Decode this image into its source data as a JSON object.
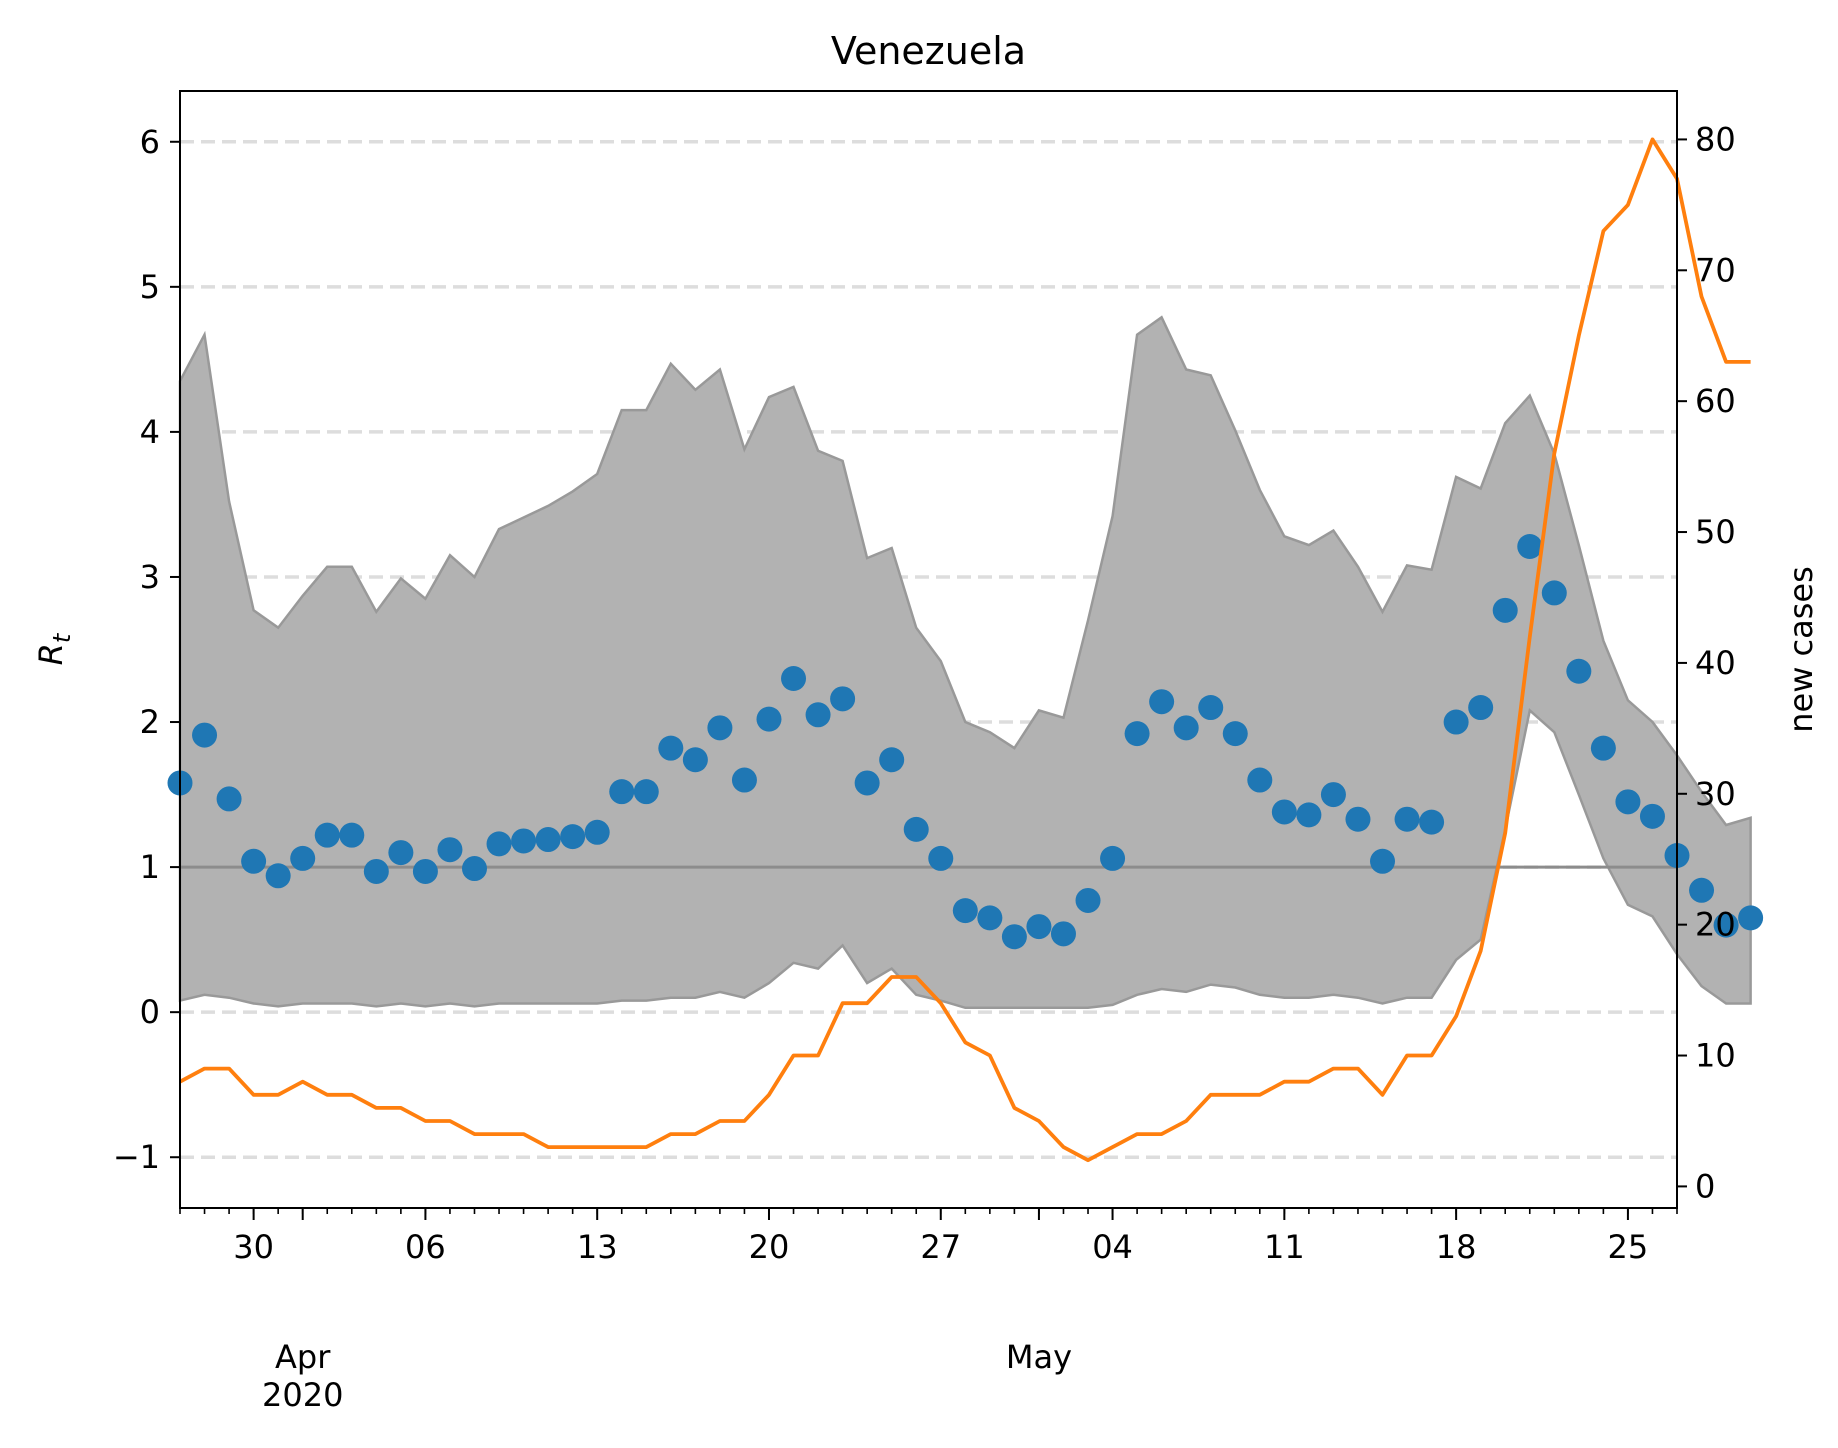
{
  "chart_data": {
    "type": "line",
    "title": "Venezuela",
    "ylabel": "R_t",
    "y2label": "new cases",
    "x_start": "2020-03-27",
    "x_end": "2020-05-27",
    "ylim": [
      -1.35,
      6.35
    ],
    "y2lim": [
      -1.65,
      83.7
    ],
    "yticks": [
      -1,
      0,
      1,
      2,
      3,
      4,
      5,
      6
    ],
    "ytick_labels": [
      "−1",
      "0",
      "1",
      "2",
      "3",
      "4",
      "5",
      "6"
    ],
    "y2ticks": [
      0,
      10,
      20,
      30,
      40,
      50,
      60,
      70,
      80
    ],
    "y2tick_labels": [
      "0",
      "10",
      "20",
      "30",
      "40",
      "50",
      "60",
      "70",
      "80"
    ],
    "xtick_dates": [
      "2020-03-30",
      "2020-04-06",
      "2020-04-13",
      "2020-04-20",
      "2020-04-27",
      "2020-05-04",
      "2020-05-11",
      "2020-05-18",
      "2020-05-25"
    ],
    "xtick_labels": [
      "30",
      "06",
      "13",
      "20",
      "27",
      "04",
      "11",
      "18",
      "25"
    ],
    "month_labels": [
      {
        "date": "2020-04-01",
        "label": "Apr",
        "year": "2020"
      },
      {
        "date": "2020-05-01",
        "label": "May",
        "year": ""
      }
    ],
    "reference_line": 1,
    "grid": "horizontal dashed",
    "colors": {
      "rt": "#1f77b4",
      "cases": "#ff7f0e",
      "band": "#b2b2b2",
      "band_edge": "#999999",
      "reference": "#8c8c8c",
      "grid": "#dddddd"
    },
    "series": [
      {
        "role": "rt",
        "axis": "left",
        "values": [
          1.58,
          1.91,
          1.47,
          1.04,
          0.94,
          1.06,
          1.22,
          1.22,
          0.97,
          1.1,
          0.97,
          1.12,
          0.99,
          1.16,
          1.18,
          1.19,
          1.21,
          1.24,
          1.52,
          1.52,
          1.82,
          1.74,
          1.96,
          1.6,
          2.02,
          2.3,
          2.05,
          2.16,
          1.58,
          1.74,
          1.26,
          1.06,
          0.7,
          0.65,
          0.52,
          0.59,
          0.54,
          0.77,
          1.06,
          1.92,
          2.14,
          1.96,
          2.1,
          1.92,
          1.6,
          1.38,
          1.36,
          1.5,
          1.33,
          1.04,
          1.33,
          1.31,
          2.0,
          2.1,
          2.77,
          3.21,
          2.89,
          2.35,
          1.82,
          1.45,
          1.35,
          1.08,
          0.84,
          0.6,
          0.65
        ]
      },
      {
        "role": "rt_upper",
        "axis": "left",
        "values": [
          4.35,
          4.67,
          3.52,
          2.77,
          2.65,
          2.87,
          3.07,
          3.07,
          2.76,
          2.99,
          2.85,
          3.15,
          3.0,
          3.33,
          3.41,
          3.49,
          3.59,
          3.71,
          4.15,
          4.15,
          4.47,
          4.29,
          4.43,
          3.88,
          4.24,
          4.31,
          3.87,
          3.8,
          3.13,
          3.2,
          2.65,
          2.42,
          2.0,
          1.93,
          1.82,
          2.08,
          2.03,
          2.7,
          3.42,
          4.67,
          4.79,
          4.43,
          4.39,
          4.01,
          3.6,
          3.28,
          3.22,
          3.32,
          3.07,
          2.76,
          3.08,
          3.05,
          3.69,
          3.61,
          4.06,
          4.25,
          3.85,
          3.22,
          2.56,
          2.15,
          2.0,
          1.77,
          1.52,
          1.29,
          1.34
        ]
      },
      {
        "role": "rt_lower",
        "axis": "left",
        "values": [
          0.08,
          0.12,
          0.1,
          0.06,
          0.04,
          0.06,
          0.06,
          0.06,
          0.04,
          0.06,
          0.04,
          0.06,
          0.04,
          0.06,
          0.06,
          0.06,
          0.06,
          0.06,
          0.08,
          0.08,
          0.1,
          0.1,
          0.14,
          0.1,
          0.2,
          0.34,
          0.3,
          0.46,
          0.2,
          0.3,
          0.12,
          0.08,
          0.03,
          0.03,
          0.03,
          0.03,
          0.03,
          0.03,
          0.05,
          0.12,
          0.16,
          0.14,
          0.19,
          0.17,
          0.12,
          0.1,
          0.1,
          0.12,
          0.1,
          0.06,
          0.1,
          0.1,
          0.36,
          0.5,
          1.26,
          2.08,
          1.93,
          1.5,
          1.06,
          0.74,
          0.66,
          0.4,
          0.18,
          0.06,
          0.06
        ]
      },
      {
        "role": "new_cases",
        "axis": "right",
        "values": [
          8,
          9,
          9,
          7,
          7,
          8,
          7,
          7,
          6,
          6,
          5,
          5,
          4,
          4,
          4,
          3,
          3,
          3,
          3,
          3,
          4,
          4,
          5,
          5,
          7,
          10,
          10,
          14,
          14,
          16,
          16,
          14,
          11,
          10,
          6,
          5,
          3,
          2,
          3,
          4,
          4,
          5,
          7,
          7,
          7,
          8,
          8,
          9,
          9,
          7,
          10,
          10,
          13,
          18,
          27,
          42,
          56,
          65,
          73,
          75,
          80,
          77,
          68,
          63,
          63
        ]
      }
    ]
  }
}
